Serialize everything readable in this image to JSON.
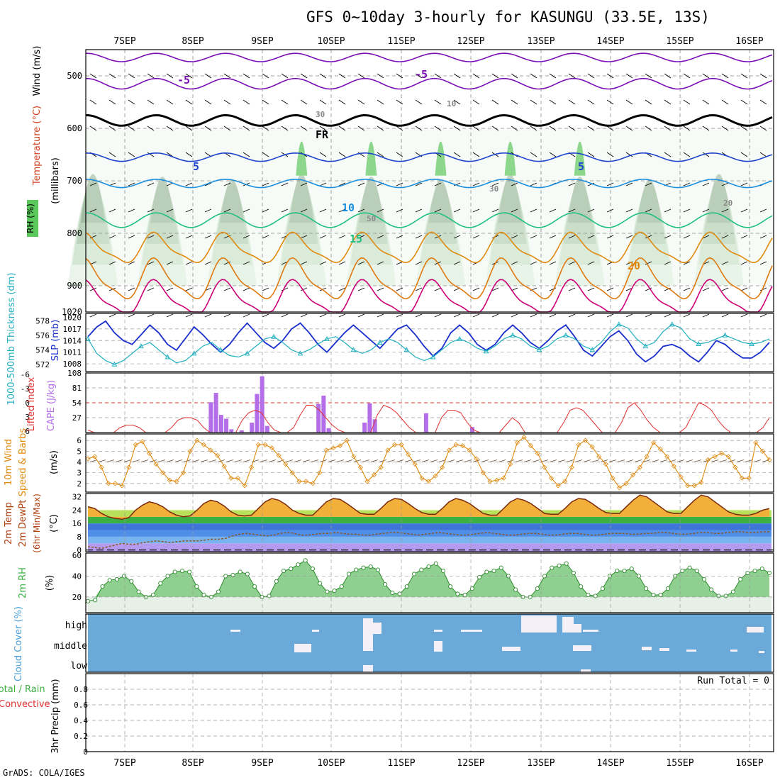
{
  "title": "GFS 0~10day 3-hourly for KASUNGU (33.5E, 13S)",
  "credit": "GrADS: COLA/IGES",
  "chart_data": [
    {
      "panel": "profile",
      "type": "heatmap",
      "x_ticks": [
        "7SEP",
        "8SEP",
        "9SEP",
        "10SEP",
        "11SEP",
        "12SEP",
        "13SEP",
        "14SEP",
        "15SEP",
        "16SEP"
      ],
      "ylabel_parts": {
        "rh": "RH (%)",
        "temp": "Temperature (°C)",
        "wind": "Wind (m/s)",
        "unit": "(millibars)"
      },
      "y_ticks": [
        "500",
        "600",
        "700",
        "800",
        "900",
        "1020"
      ],
      "y_values": [
        500,
        600,
        700,
        800,
        900
      ],
      "ylim": [
        450,
        950
      ],
      "contour_labels": [
        "-5",
        "-5",
        "FR",
        "5",
        "5",
        "10",
        "15",
        "20",
        "30",
        "50",
        "10",
        "20",
        "30"
      ],
      "temperature_levels": [
        -5,
        0,
        5,
        10,
        15,
        20,
        25,
        30
      ],
      "colors": {
        "rh": "#4caf50",
        "temp_cold": "#7b0fb5",
        "temp_fr": "#000000",
        "temp_mid": "#1f44cc",
        "temp_warm": "#e08a10",
        "temp_hot": "#cc0077"
      }
    },
    {
      "panel": "thickness_slp",
      "type": "line",
      "ylabel_left": "1000-500mb Thickness (dm)",
      "ylabel_right": "SLP (mb)",
      "left_ticks": [
        "572",
        "574",
        "576",
        "578"
      ],
      "right_ticks": [
        "1008",
        "1011",
        "1014",
        "1017",
        "1020"
      ],
      "series": [
        {
          "name": "SLP (mb)",
          "color": "#1a2fcc",
          "values": [
            1015,
            1017.5,
            1019,
            1016,
            1014,
            1013,
            1015.5,
            1018,
            1016,
            1013,
            1011.5,
            1014.5,
            1017.5,
            1015.5,
            1013,
            1011,
            1013,
            1016,
            1018.5,
            1016,
            1013.5,
            1012,
            1014,
            1017,
            1018.5,
            1016,
            1013,
            1011,
            1013.5,
            1016,
            1018,
            1016,
            1014,
            1012,
            1014.5,
            1017,
            1018,
            1015.5,
            1012.5,
            1010,
            1012,
            1016,
            1018,
            1016,
            1013,
            1011.5,
            1013,
            1016,
            1018,
            1016,
            1013.5,
            1012,
            1014,
            1016.5,
            1018,
            1015,
            1011.5,
            1010,
            1012.5,
            1015,
            1016.5,
            1014,
            1010.5,
            1008.5,
            1010,
            1012.5,
            1013,
            1012,
            1010,
            1008.5,
            1011,
            1014,
            1013,
            1011,
            1009.5,
            1009.5,
            1011,
            1013.5
          ]
        },
        {
          "name": "Thickness (dm)",
          "color": "#22b0c0",
          "values": [
            575.5,
            573.5,
            572.5,
            572,
            572.5,
            573.5,
            574.5,
            575,
            574,
            573,
            572.2,
            572.5,
            573.5,
            574.5,
            575,
            574,
            573.2,
            573,
            573.5,
            574.5,
            575.5,
            575.8,
            575,
            574,
            573.5,
            574,
            574.8,
            575.5,
            575.8,
            575,
            574,
            573.5,
            574,
            575,
            575.5,
            575,
            574,
            573,
            572.5,
            573,
            574,
            575,
            575.5,
            575,
            574.2,
            573.8,
            574.5,
            575.5,
            576,
            575.5,
            574.5,
            574,
            574.5,
            575.5,
            576,
            575.5,
            574.5,
            574,
            575,
            576.5,
            577.5,
            577,
            575.5,
            574.5,
            575,
            576.5,
            577.5,
            577,
            575.5,
            574.8,
            575,
            575.5,
            576,
            575.5,
            575,
            574.8,
            575,
            575.5
          ]
        }
      ]
    },
    {
      "panel": "cape_li",
      "type": "bar",
      "ylabel_left": "Lifted Index",
      "ylabel_right": "CAPE (J/kg)",
      "left_ticks": [
        "-6",
        "-3",
        "0",
        "3",
        "6"
      ],
      "right_ticks": [
        "27",
        "54",
        "81",
        "108"
      ],
      "series": [
        {
          "name": "CAPE (J/kg)",
          "color": "#b36ee8",
          "values": [
            0,
            0,
            0,
            0,
            0,
            0,
            0,
            0,
            0,
            0,
            0,
            0,
            0,
            0,
            0,
            0,
            0,
            0,
            0,
            0,
            0,
            0,
            0,
            0,
            55,
            72,
            32,
            25,
            6,
            0,
            4,
            0,
            18,
            70,
            102,
            12,
            0,
            0,
            0,
            0,
            0,
            0,
            0,
            0,
            0,
            52,
            67,
            8,
            0,
            0,
            0,
            0,
            0,
            0,
            18,
            53,
            24,
            0,
            0,
            0,
            0,
            0,
            0,
            0,
            0,
            0,
            35,
            0,
            0,
            0,
            0,
            0,
            0,
            0,
            0,
            10,
            0,
            0,
            0,
            0,
            0,
            0,
            0,
            0,
            0,
            0,
            0,
            0,
            0,
            0,
            0,
            0,
            0,
            0,
            0,
            0,
            0,
            0,
            0,
            0,
            0,
            0,
            0,
            0,
            0,
            0,
            0,
            0,
            0,
            0,
            0,
            0,
            0,
            0,
            0,
            0,
            0,
            0,
            0,
            0,
            0,
            0,
            0,
            0,
            0,
            0,
            0,
            0,
            0,
            0,
            0,
            0,
            0,
            0
          ]
        },
        {
          "name": "Lifted Index",
          "color": "#e03030",
          "values": [
            5.5,
            6,
            6,
            6,
            6,
            5,
            4.5,
            4.5,
            5,
            6,
            6,
            6,
            6,
            5,
            3.5,
            3,
            3,
            3.5,
            5,
            6,
            6,
            6,
            6,
            6,
            3.5,
            2,
            1.5,
            2,
            4,
            5.5,
            6,
            6,
            5,
            2.5,
            0.5,
            0.5,
            1.5,
            3,
            4.5,
            5.5,
            6,
            6,
            6,
            6,
            6,
            2.5,
            0.5,
            1,
            2,
            3.5,
            5,
            6,
            6,
            6,
            6,
            3,
            1.5,
            1.5,
            2,
            4,
            5.5,
            6,
            6,
            6,
            6,
            4.5,
            3,
            4,
            6,
            6,
            6,
            6,
            6,
            6,
            4,
            1.5,
            1,
            1.5,
            3,
            4.5,
            6,
            6,
            6,
            4,
            1,
            0,
            1.5,
            3.5,
            5,
            6,
            6,
            6,
            6,
            5,
            2.5,
            0,
            0.5,
            1.5,
            3.5,
            5,
            6,
            6,
            6,
            6,
            6,
            5,
            3
          ]
        }
      ]
    },
    {
      "panel": "wind",
      "type": "line",
      "ylabel_left": "10m Wind",
      "ylabel_mid": "Speed & Barbs",
      "ylabel_unit": "(m/s)",
      "y_ticks": [
        "2",
        "3",
        "4",
        "5",
        "6"
      ],
      "series": [
        {
          "name": "10m Wind Speed (m/s)",
          "color": "#e08a10",
          "values": [
            4.3,
            4.5,
            3.5,
            2,
            2,
            1.8,
            3.5,
            5.6,
            5.9,
            4.8,
            3.8,
            3,
            2.3,
            2.2,
            3,
            5,
            6,
            5.6,
            5.1,
            4.6,
            3.6,
            2.5,
            2.5,
            1.8,
            3.5,
            5.6,
            5.6,
            5.3,
            4.6,
            3.8,
            3,
            2.2,
            2.2,
            2,
            3,
            5.1,
            5.3,
            5.5,
            6,
            4.5,
            3.5,
            2.2,
            2.8,
            3.5,
            5.1,
            5.6,
            5.6,
            4.7,
            3.8,
            2.5,
            2.2,
            2.7,
            3.5,
            5.1,
            5.6,
            5.5,
            5.1,
            4.3,
            3,
            2.2,
            2.3,
            2.5,
            3.8,
            5.8,
            6.3,
            5.5,
            4.8,
            3.5,
            2.5,
            1.8,
            2.2,
            3.5,
            5.6,
            6,
            5.4,
            4.5,
            3.8,
            2.5,
            1.6,
            2,
            2.8,
            3.5,
            4.5,
            5.8,
            5.2,
            4.5,
            3.6,
            2.6,
            1.8,
            1.8,
            2.1,
            4.2,
            4.5,
            4.8,
            4.5,
            3.5,
            2.5,
            2.5,
            5.8,
            5,
            4.2
          ]
        }
      ]
    },
    {
      "panel": "temp",
      "type": "area",
      "ylabel_left": "2m Temp",
      "ylabel_mid": "2m DewPt",
      "ylabel_right": "(6hr Min/Max)",
      "ylabel_unit": "(°C)",
      "y_ticks": [
        "0",
        "8",
        "16",
        "24",
        "32"
      ],
      "series": [
        {
          "name": "2m Temp (°C)",
          "color": "#7a2a0a",
          "values": [
            26,
            25,
            22,
            20,
            19,
            18.5,
            19.5,
            24,
            27,
            29,
            28,
            26,
            23,
            21,
            20,
            20.5,
            24,
            28,
            30,
            29,
            26.5,
            23,
            21,
            20.5,
            21,
            25,
            29,
            31,
            30,
            27.5,
            24,
            22,
            21,
            21,
            25,
            29,
            31,
            30.5,
            28,
            25,
            22,
            21.5,
            21.5,
            25,
            29,
            31,
            30.5,
            28,
            25,
            22.5,
            21.5,
            21.5,
            25,
            29,
            31,
            30,
            28,
            25,
            22,
            21,
            21,
            25,
            29,
            31,
            30,
            28,
            25,
            22,
            21.5,
            21.5,
            25,
            29,
            31,
            30.5,
            28,
            25,
            22.5,
            22,
            22,
            26,
            30,
            33,
            32,
            29,
            26,
            23,
            22,
            22,
            26,
            30,
            33,
            32,
            29,
            26,
            23,
            21.5,
            21,
            21,
            22,
            24,
            25
          ]
        },
        {
          "name": "2m DewPt (°C)",
          "color": "#8b5a2b",
          "values": [
            2,
            1.5,
            1,
            2,
            3,
            4,
            3.5,
            3.5,
            4.5,
            5,
            5.5,
            5,
            4.5,
            5,
            5.5,
            5.5,
            5.5,
            6,
            6.5,
            6.5,
            7,
            8.5,
            9.5,
            10,
            9.5,
            9,
            8.5,
            9,
            10,
            10.5,
            10,
            9,
            9,
            9.5,
            10,
            10,
            10.5,
            10,
            9.5,
            9.5,
            9,
            9,
            9.5,
            10,
            10.5,
            10.5,
            10,
            9.5,
            9,
            9.5,
            10,
            10.5,
            10,
            9.5,
            9,
            9,
            9.5,
            10,
            10.5,
            10,
            9.5,
            9,
            9,
            9.5,
            10,
            10,
            9.5,
            9,
            9,
            9.5,
            10,
            10,
            9.5,
            9,
            9,
            9.5,
            10,
            10,
            10,
            9.5,
            9.5,
            10,
            10,
            10.5,
            10.5,
            10,
            9.5,
            9.5,
            10,
            10.5,
            10.5,
            10,
            10,
            10.5,
            11,
            11,
            10.5,
            10.5,
            11,
            11
          ]
        }
      ]
    },
    {
      "panel": "rh",
      "type": "area",
      "ylabel_left": "2m RH",
      "ylabel_unit": "(%)",
      "y_ticks": [
        "20",
        "40",
        "60"
      ],
      "series": [
        {
          "name": "2m RH (%)",
          "color": "#4caf50",
          "values": [
            16,
            17,
            30,
            36,
            37,
            40,
            35,
            25,
            20,
            22,
            33,
            40,
            44,
            45,
            44,
            30,
            22,
            20,
            25,
            40,
            41,
            44,
            42,
            30,
            20,
            21,
            35,
            45,
            47,
            51,
            55,
            47,
            33,
            25,
            26,
            30,
            42,
            46,
            48,
            49,
            46,
            32,
            24,
            23,
            30,
            42,
            46,
            49,
            52,
            45,
            30,
            23,
            22,
            28,
            39,
            44,
            45,
            48,
            40,
            27,
            20,
            20,
            28,
            40,
            48,
            50,
            52,
            43,
            30,
            22,
            21,
            28,
            40,
            45,
            45,
            47,
            40,
            28,
            22,
            22,
            28,
            40,
            45,
            48,
            45,
            37,
            27,
            21,
            21,
            25,
            37,
            43,
            45,
            47,
            43
          ]
        }
      ]
    },
    {
      "panel": "cloud",
      "type": "bar",
      "ylabel": "Cloud Cover (%)",
      "y_ticks": [
        "high",
        "middle",
        "low"
      ],
      "colors": {
        "background": "#6aa9d8",
        "cloud": "#f4f0f8"
      }
    },
    {
      "panel": "precip",
      "type": "bar",
      "ylabel_left": "Total / Rain",
      "ylabel_left2": "Convective",
      "ylabel_unit": "3hr Precip (mm)",
      "run_total_label": "Run Total = 0",
      "y_ticks": [
        "0",
        "0.2",
        "0.4",
        "0.6",
        "0.8"
      ],
      "ylim": [
        0,
        1
      ],
      "series": [
        {
          "name": "Total / Rain",
          "color": "#3cb043",
          "values": []
        },
        {
          "name": "Convective",
          "color": "#e03030",
          "values": []
        }
      ],
      "x_ticks": [
        "7SEP",
        "8SEP",
        "9SEP",
        "10SEP",
        "11SEP",
        "12SEP",
        "13SEP",
        "14SEP",
        "15SEP",
        "16SEP"
      ]
    }
  ]
}
